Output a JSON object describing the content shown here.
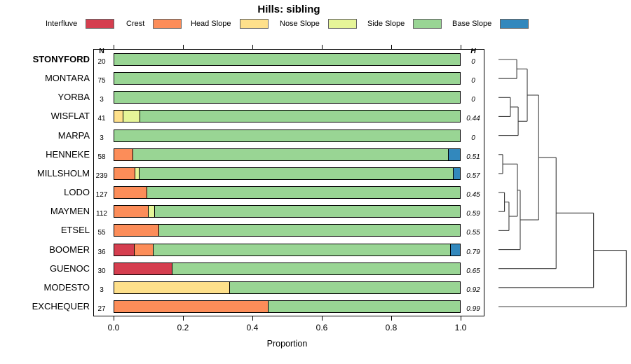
{
  "title": "Hills: sibling",
  "legend": {
    "items": [
      {
        "label": "Interfluve",
        "color": "#D53E4F"
      },
      {
        "label": "Crest",
        "color": "#FC8D59"
      },
      {
        "label": "Head Slope",
        "color": "#FEE08B"
      },
      {
        "label": "Nose Slope",
        "color": "#E6F598"
      },
      {
        "label": "Side Slope",
        "color": "#99D594"
      },
      {
        "label": "Base Slope",
        "color": "#3288BD"
      }
    ]
  },
  "columns": {
    "n_header": "N",
    "h_header": "H"
  },
  "axis": {
    "tick_labels": [
      "0.0",
      "0.2",
      "0.4",
      "0.6",
      "0.8",
      "1.0"
    ],
    "tick_values": [
      0,
      0.2,
      0.4,
      0.6,
      0.8,
      1.0
    ],
    "label": "Proportion"
  },
  "chart_data": {
    "type": "bar",
    "orientation": "horizontal",
    "stacked": true,
    "title": "Hills: sibling",
    "xlabel": "Proportion",
    "xlim": [
      0,
      1
    ],
    "categories": [
      "STONYFORD",
      "MONTARA",
      "YORBA",
      "WISFLAT",
      "MARPA",
      "HENNEKE",
      "MILLSHOLM",
      "LODO",
      "MAYMEN",
      "ETSEL",
      "BOOMER",
      "GUENOC",
      "MODESTO",
      "EXCHEQUER"
    ],
    "highlighted_category": "STONYFORD",
    "n_values": [
      20,
      75,
      3,
      41,
      3,
      58,
      239,
      127,
      112,
      55,
      36,
      30,
      3,
      27
    ],
    "h_values": [
      "0",
      "0",
      "0",
      "0.44",
      "0",
      "0.51",
      "0.57",
      "0.45",
      "0.59",
      "0.55",
      "0.79",
      "0.65",
      "0.92",
      "0.99"
    ],
    "series": [
      {
        "name": "Interfluve",
        "color": "#D53E4F",
        "values": [
          0,
          0,
          0,
          0,
          0,
          0,
          0,
          0,
          0,
          0,
          0.056,
          0.167,
          0,
          0
        ]
      },
      {
        "name": "Crest",
        "color": "#FC8D59",
        "values": [
          0,
          0,
          0,
          0,
          0,
          0.052,
          0.059,
          0.094,
          0.098,
          0.127,
          0.056,
          0,
          0,
          0.444
        ]
      },
      {
        "name": "Head Slope",
        "color": "#FEE08B",
        "values": [
          0,
          0,
          0,
          0.024,
          0,
          0,
          0,
          0,
          0,
          0,
          0,
          0,
          0.333,
          0
        ]
      },
      {
        "name": "Nose Slope",
        "color": "#E6F598",
        "values": [
          0,
          0,
          0,
          0.049,
          0,
          0,
          0.013,
          0,
          0.018,
          0,
          0,
          0,
          0,
          0
        ]
      },
      {
        "name": "Side Slope",
        "color": "#99D594",
        "values": [
          1,
          1,
          1,
          0.927,
          1,
          0.914,
          0.907,
          0.906,
          0.884,
          0.873,
          0.86,
          0.833,
          0.667,
          0.556
        ]
      },
      {
        "name": "Base Slope",
        "color": "#3288BD",
        "values": [
          0,
          0,
          0,
          0,
          0,
          0.034,
          0.021,
          0,
          0,
          0,
          0.028,
          0,
          0,
          0
        ]
      }
    ],
    "dendrogram": {
      "leaf_order": [
        "STONYFORD",
        "MONTARA",
        "YORBA",
        "WISFLAT",
        "MARPA",
        "HENNEKE",
        "MILLSHOLM",
        "LODO",
        "MAYMEN",
        "ETSEL",
        "BOOMER",
        "GUENOC",
        "MODESTO",
        "EXCHEQUER"
      ],
      "merges": [
        {
          "a": "L0",
          "b": "L1",
          "h": 0.143
        },
        {
          "a": "L2",
          "b": "L3",
          "h": 0.093
        },
        {
          "a": "M1",
          "b": "L4",
          "h": 0.154
        },
        {
          "a": "M0",
          "b": "M2",
          "h": 0.225
        },
        {
          "a": "L5",
          "b": "L6",
          "h": 0.033
        },
        {
          "a": "L7",
          "b": "L8",
          "h": 0.047
        },
        {
          "a": "M5",
          "b": "L9",
          "h": 0.082
        },
        {
          "a": "M4",
          "b": "M6",
          "h": 0.148
        },
        {
          "a": "M7",
          "b": "L10",
          "h": 0.17
        },
        {
          "a": "M3",
          "b": "M8",
          "h": 0.314
        },
        {
          "a": "M9",
          "b": "L11",
          "h": 0.451
        },
        {
          "a": "M10",
          "b": "L12",
          "h": 0.744
        },
        {
          "a": "M11",
          "b": "L13",
          "h": 1.0
        }
      ]
    }
  }
}
